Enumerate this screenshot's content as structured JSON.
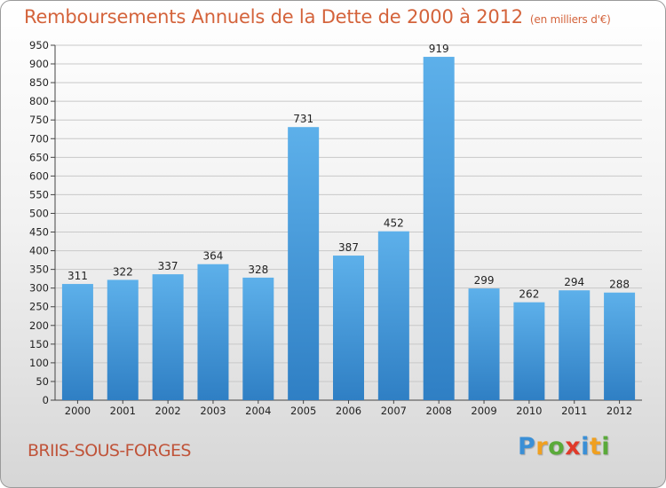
{
  "header": {
    "title": "Remboursements Annuels de la Dette de 2000 à 2012",
    "unit": "(en milliers d'€)"
  },
  "footer": {
    "commune": "BRIIS-SOUS-FORGES",
    "logo_letters": [
      "P",
      "r",
      "o",
      "x",
      "i",
      "t",
      "i"
    ],
    "logo_colors": [
      "#3a8fd6",
      "#f0a020",
      "#5aaa3a",
      "#e03a2a",
      "#3a8fd6",
      "#f0a020",
      "#5aaa3a"
    ]
  },
  "colors": {
    "bar_top": "#5db0ea",
    "bar_bottom": "#2f7fc4",
    "title": "#d4633b",
    "grid": "#c8c8c8"
  },
  "chart_data": {
    "type": "bar",
    "title": "Remboursements Annuels de la Dette de 2000 à 2012",
    "xlabel": "",
    "ylabel": "",
    "categories": [
      "2000",
      "2001",
      "2002",
      "2003",
      "2004",
      "2005",
      "2006",
      "2007",
      "2008",
      "2009",
      "2010",
      "2011",
      "2012"
    ],
    "values": [
      311,
      322,
      337,
      364,
      328,
      731,
      387,
      452,
      919,
      299,
      262,
      294,
      288
    ],
    "ylim": [
      0,
      950
    ],
    "yticks": [
      0,
      50,
      100,
      150,
      200,
      250,
      300,
      350,
      400,
      450,
      500,
      550,
      600,
      650,
      700,
      750,
      800,
      850,
      900,
      950
    ],
    "grid": true,
    "data_labels": true
  }
}
